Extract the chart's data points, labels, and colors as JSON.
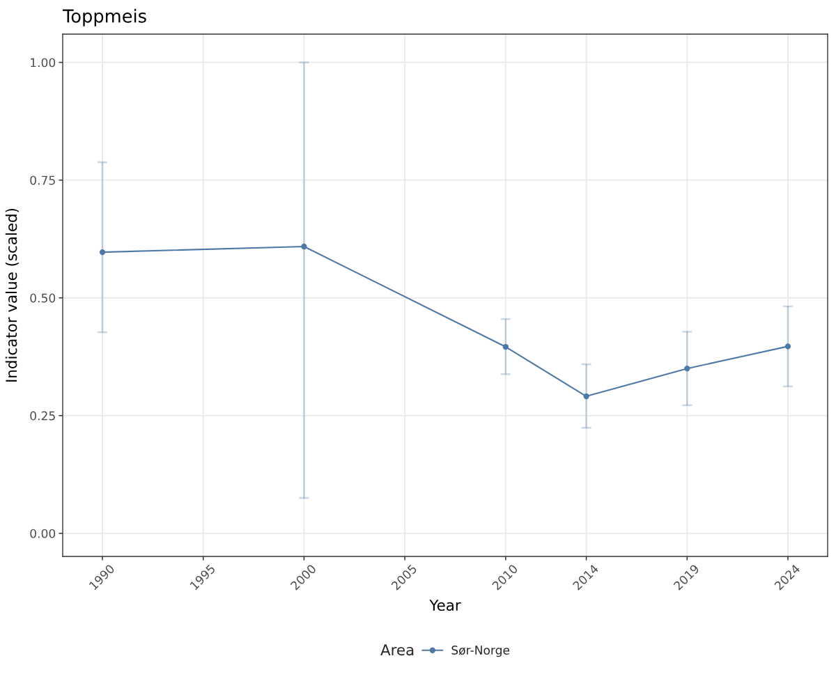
{
  "chart_data": {
    "type": "line",
    "title": "Toppmeis",
    "xlabel": "Year",
    "ylabel": "Indicator value (scaled)",
    "legend_title": "Area",
    "x": [
      1990,
      2000,
      2010,
      2014,
      2019,
      2024
    ],
    "series": [
      {
        "name": "Sør-Norge",
        "color": "#4e79a7",
        "values": [
          0.597,
          0.609,
          0.396,
          0.291,
          0.35,
          0.397
        ],
        "errors": [
          [
            0.427,
            0.788
          ],
          [
            0.075,
            1.0
          ],
          [
            0.338,
            0.455
          ],
          [
            0.224,
            0.359
          ],
          [
            0.272,
            0.428
          ],
          [
            0.312,
            0.482
          ]
        ]
      }
    ],
    "xlim": [
      1988.03,
      2025.97
    ],
    "xticks": [
      1990,
      1995,
      2000,
      2005,
      2010,
      2014,
      2019,
      2024
    ],
    "ylim": [
      -0.049,
      1.06
    ],
    "yticks": [
      {
        "value": 0,
        "label": "0.00"
      },
      {
        "value": 0.25,
        "label": "0.25"
      },
      {
        "value": 0.5,
        "label": "0.50"
      },
      {
        "value": 0.75,
        "label": "0.75"
      },
      {
        "value": 1,
        "label": "1.00"
      }
    ],
    "grid": true,
    "legend": "bottom",
    "marker": "circle",
    "line_style": "solid"
  }
}
